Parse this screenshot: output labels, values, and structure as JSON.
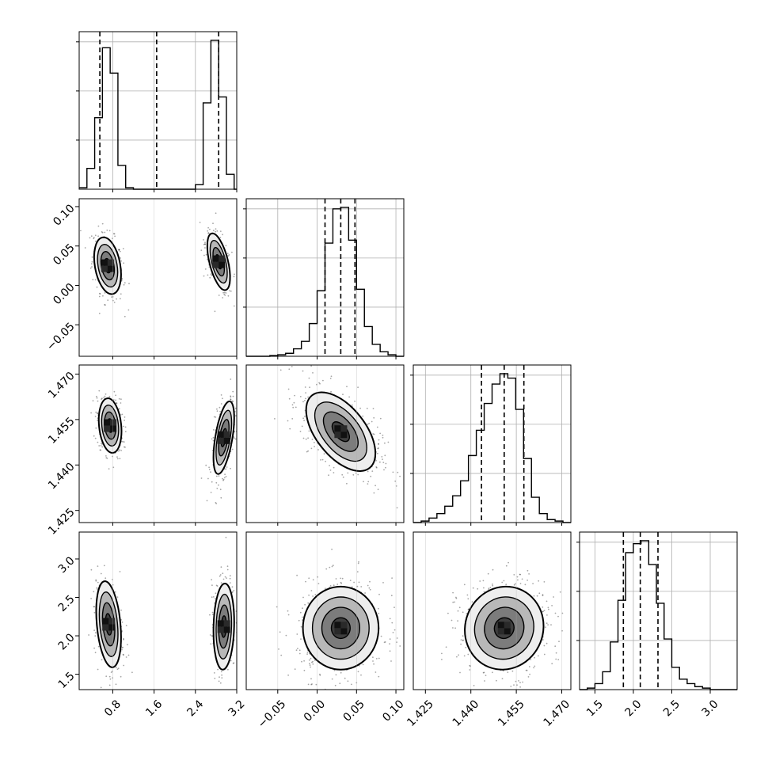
{
  "chart_data": {
    "type": "corner",
    "title": "",
    "parameters": [
      {
        "xlabel": "",
        "range": [
          0.15,
          3.2
        ],
        "ticks": [
          0.8,
          1.6,
          2.4,
          3.2
        ],
        "tick_labels": [
          "0.8",
          "1.6",
          "2.4",
          "3.2"
        ],
        "quantiles": [
          0.55,
          1.65,
          2.85
        ],
        "histogram": {
          "edges": [
            0.15,
            0.3,
            0.45,
            0.6,
            0.75,
            0.9,
            1.05,
            1.2,
            1.35,
            1.5,
            1.65,
            1.8,
            1.95,
            2.1,
            2.25,
            2.4,
            2.55,
            2.7,
            2.85,
            3.0,
            3.15,
            3.2
          ],
          "counts": [
            0.01,
            0.14,
            0.48,
            0.95,
            0.78,
            0.16,
            0.01,
            0,
            0,
            0,
            0,
            0,
            0,
            0,
            0,
            0.03,
            0.58,
            1.0,
            0.62,
            0.1,
            0
          ]
        }
      },
      {
        "xlabel": "",
        "range": [
          -0.09,
          0.11
        ],
        "ticks": [
          -0.05,
          0.0,
          0.05,
          0.1
        ],
        "tick_labels": [
          "−0.05",
          "0.00",
          "0.05",
          "0.10"
        ],
        "quantiles": [
          0.01,
          0.03,
          0.048
        ],
        "histogram": {
          "edges": [
            -0.09,
            -0.08,
            -0.07,
            -0.06,
            -0.05,
            -0.04,
            -0.03,
            -0.02,
            -0.01,
            0.0,
            0.01,
            0.02,
            0.03,
            0.04,
            0.05,
            0.06,
            0.07,
            0.08,
            0.09,
            0.1,
            0.11
          ],
          "counts": [
            0,
            0,
            0,
            0.005,
            0.01,
            0.02,
            0.05,
            0.1,
            0.22,
            0.44,
            0.76,
            0.99,
            1.0,
            0.78,
            0.45,
            0.2,
            0.08,
            0.03,
            0.01,
            0
          ]
        }
      },
      {
        "xlabel": "",
        "range": [
          1.421,
          1.473
        ],
        "ticks": [
          1.425,
          1.44,
          1.455,
          1.47
        ],
        "tick_labels": [
          "1.425",
          "1.440",
          "1.455",
          "1.470"
        ],
        "quantiles": [
          1.4435,
          1.451,
          1.4575
        ],
        "histogram": {
          "edges": [
            1.421,
            1.4236,
            1.4262,
            1.4288,
            1.4314,
            1.434,
            1.4366,
            1.4392,
            1.4418,
            1.4444,
            1.447,
            1.4496,
            1.4522,
            1.4548,
            1.4574,
            1.46,
            1.4626,
            1.4652,
            1.4678,
            1.4704,
            1.473
          ],
          "counts": [
            0,
            0.01,
            0.03,
            0.06,
            0.11,
            0.18,
            0.28,
            0.45,
            0.62,
            0.8,
            0.93,
            1.0,
            0.97,
            0.76,
            0.43,
            0.17,
            0.06,
            0.02,
            0.01,
            0
          ]
        }
      },
      {
        "xlabel": "",
        "range": [
          1.3,
          3.35
        ],
        "ticks": [
          1.5,
          2.0,
          2.5,
          3.0
        ],
        "tick_labels": [
          "1.5",
          "2.0",
          "2.5",
          "3.0"
        ],
        "quantiles": [
          1.87,
          2.09,
          2.32
        ],
        "histogram": {
          "edges": [
            1.3,
            1.4,
            1.5,
            1.6,
            1.7,
            1.8,
            1.9,
            2.0,
            2.1,
            2.2,
            2.3,
            2.4,
            2.5,
            2.6,
            2.7,
            2.8,
            2.9,
            3.0,
            3.1,
            3.2,
            3.35
          ],
          "counts": [
            0,
            0.01,
            0.04,
            0.12,
            0.32,
            0.6,
            0.92,
            0.98,
            1.0,
            0.84,
            0.58,
            0.34,
            0.15,
            0.07,
            0.04,
            0.02,
            0.01,
            0,
            0,
            0
          ]
        }
      }
    ],
    "y_tick_labels": {
      "1": [
        "−0.05",
        "0.00",
        "0.05",
        "0.10"
      ],
      "2": [
        "1.425",
        "1.440",
        "1.455",
        "1.470"
      ],
      "3": [
        "1.5",
        "2.0",
        "2.5",
        "3.0"
      ]
    },
    "y_ticks": {
      "1": [
        -0.05,
        0.0,
        0.05,
        0.1
      ],
      "2": [
        1.425,
        1.44,
        1.455,
        1.47
      ],
      "3": [
        1.5,
        2.0,
        2.5,
        3.0
      ]
    },
    "pairs": [
      {
        "row": 1,
        "col": 0,
        "clusters": [
          {
            "cx": 0.7,
            "cy": 0.025,
            "sx": 0.13,
            "sy": 0.018,
            "rho": -0.3,
            "n": 320
          },
          {
            "cx": 2.85,
            "cy": 0.03,
            "sx": 0.11,
            "sy": 0.018,
            "rho": -0.55,
            "n": 320
          }
        ]
      },
      {
        "row": 2,
        "col": 0,
        "clusters": [
          {
            "cx": 0.75,
            "cy": 1.453,
            "sx": 0.11,
            "sy": 0.0045,
            "rho": -0.2,
            "n": 320
          },
          {
            "cx": 2.95,
            "cy": 1.449,
            "sx": 0.1,
            "sy": 0.006,
            "rho": 0.55,
            "n": 320
          }
        ]
      },
      {
        "row": 2,
        "col": 1,
        "clusters": [
          {
            "cx": 0.03,
            "cy": 1.451,
            "sx": 0.022,
            "sy": 0.0065,
            "rho": -0.55,
            "n": 640
          }
        ]
      },
      {
        "row": 3,
        "col": 0,
        "clusters": [
          {
            "cx": 0.72,
            "cy": 2.15,
            "sx": 0.12,
            "sy": 0.28,
            "rho": -0.3,
            "n": 320
          },
          {
            "cx": 2.95,
            "cy": 2.12,
            "sx": 0.1,
            "sy": 0.28,
            "rho": 0.1,
            "n": 320
          }
        ]
      },
      {
        "row": 3,
        "col": 1,
        "clusters": [
          {
            "cx": 0.03,
            "cy": 2.1,
            "sx": 0.024,
            "sy": 0.27,
            "rho": 0.0,
            "n": 640
          }
        ]
      },
      {
        "row": 3,
        "col": 2,
        "clusters": [
          {
            "cx": 1.451,
            "cy": 2.1,
            "sx": 0.0065,
            "sy": 0.27,
            "rho": 0.05,
            "n": 640
          }
        ]
      }
    ],
    "grid": true,
    "colors": {
      "line": "#000000",
      "grid": "#b0b0b0",
      "points": "#000000",
      "levels": [
        "#eeeeee",
        "#b8b8b8",
        "#7c7c7c",
        "#3e3e3e"
      ]
    }
  }
}
